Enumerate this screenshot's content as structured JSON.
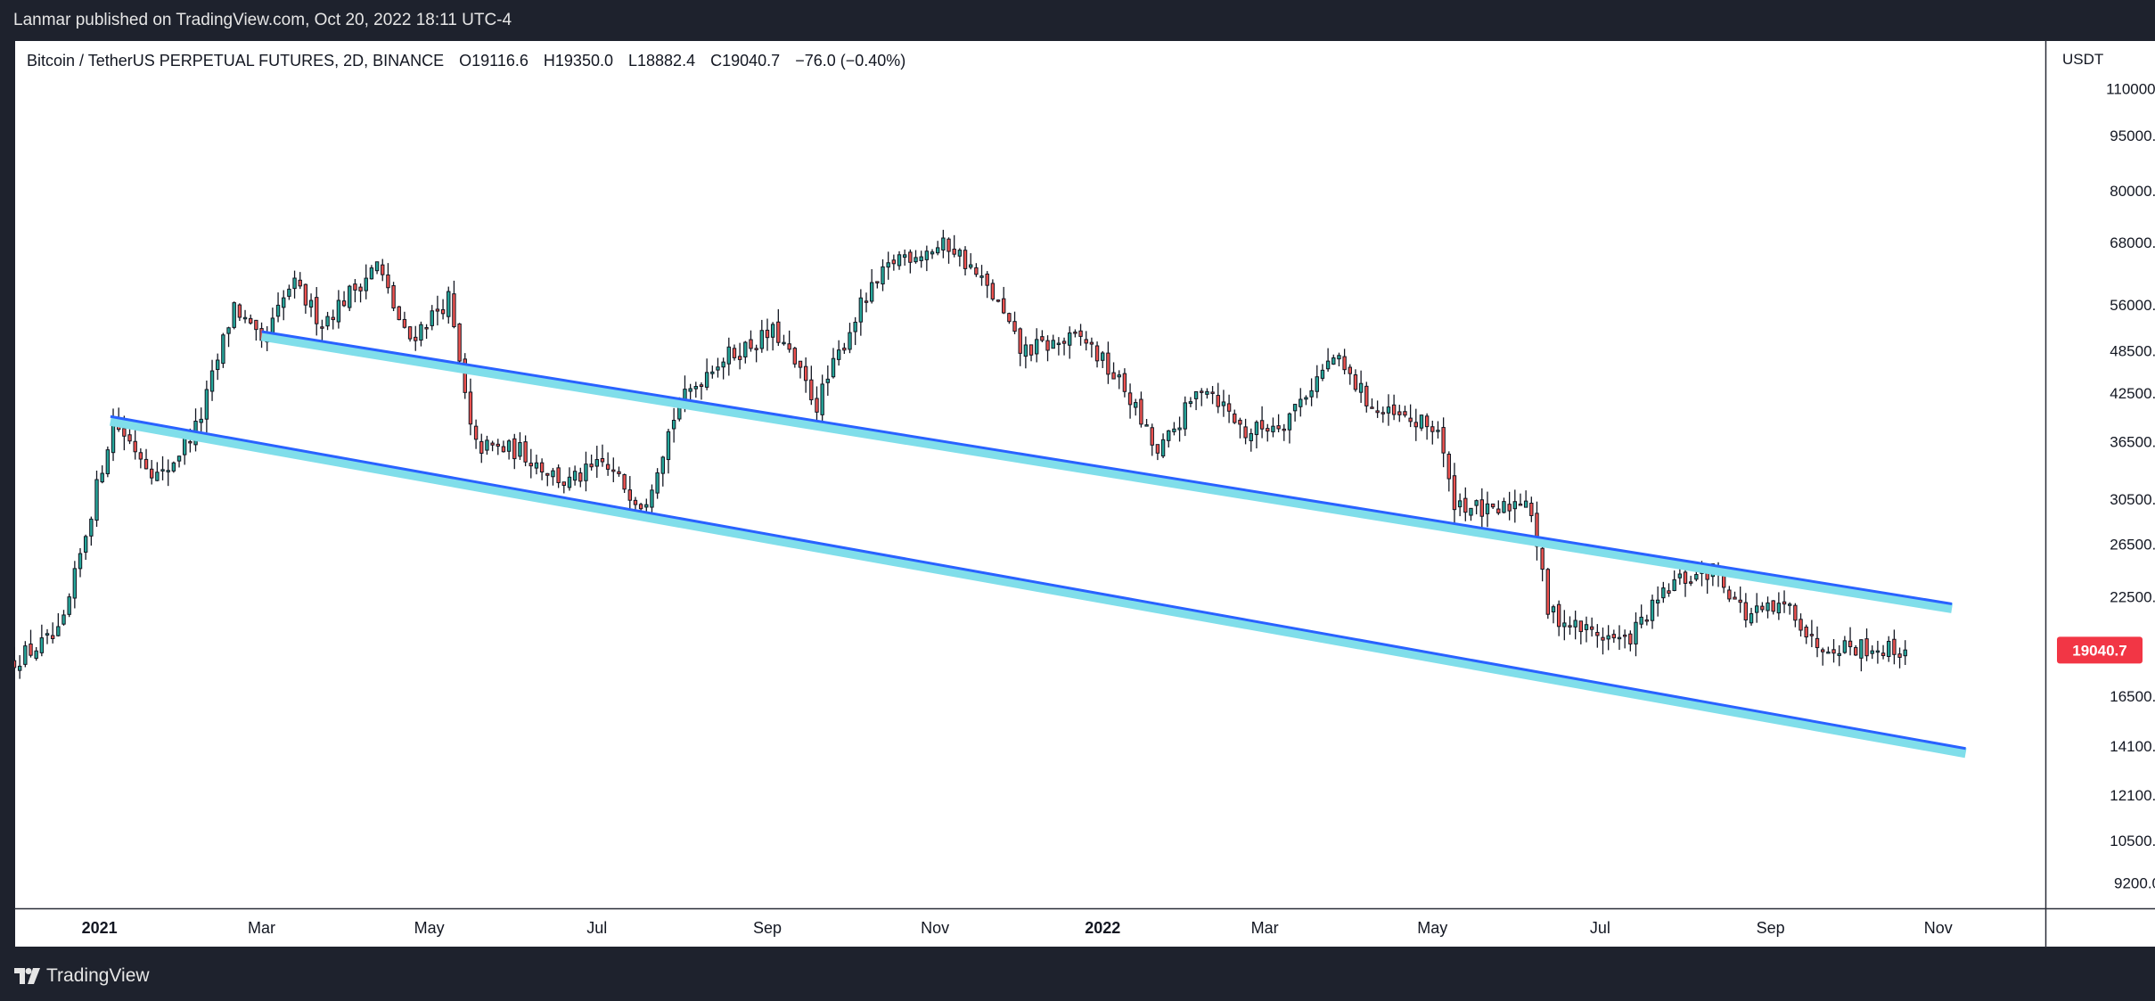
{
  "header": {
    "published_by": "Lanmar published on TradingView.com, Oct 20, 2022 18:11 UTC-4"
  },
  "legend": {
    "symbol": "Bitcoin / TetherUS PERPETUAL FUTURES, 2D, BINANCE",
    "open": "O19116.6",
    "high": "H19350.0",
    "low": "L18882.4",
    "close": "C19040.7",
    "change": "−76.0 (−0.40%)"
  },
  "footer": {
    "brand": "TradingView"
  },
  "colors": {
    "up": "#26a69a",
    "down": "#ef5350",
    "candle": "#131722",
    "channel_line": "#2962ff",
    "channel_glow": "#80deea",
    "price_tag": "#f23645"
  },
  "chart_data": {
    "type": "candlestick",
    "scale": "log",
    "currency": "USDT",
    "y_ticks": [
      "110000.0",
      "95000.0",
      "80000.0",
      "68000.0",
      "56000.0",
      "48500.0",
      "42500.0",
      "36500.0",
      "30500.0",
      "26500.0",
      "22500.0",
      "19040.7",
      "16500.0",
      "14100.0",
      "12100.0",
      "10500.0",
      "9200.0"
    ],
    "y_tick_values": [
      110000,
      95000,
      80000,
      68000,
      56000,
      48500,
      42500,
      36500,
      30500,
      26500,
      22500,
      19040.7,
      16500,
      14100,
      12100,
      10500,
      9200
    ],
    "x_ticks": [
      "2021",
      "Mar",
      "May",
      "Jul",
      "Sep",
      "Nov",
      "2022",
      "Mar",
      "May",
      "Jul",
      "Sep",
      "Nov"
    ],
    "x_tick_dates": [
      "2021-01-01",
      "2021-03-01",
      "2021-05-01",
      "2021-07-01",
      "2021-09-01",
      "2021-11-01",
      "2022-01-01",
      "2022-03-01",
      "2022-05-01",
      "2022-07-01",
      "2022-09-01",
      "2022-11-01"
    ],
    "last_price": "19040.7",
    "last_price_value": 19040.7,
    "x_range": [
      "2020-12-01",
      "2022-12-10"
    ],
    "y_range": [
      8500,
      128000
    ],
    "anchors": [
      [
        "2020-12-01",
        18300
      ],
      [
        "2020-12-20",
        20000
      ],
      [
        "2021-01-08",
        39000
      ],
      [
        "2021-01-25",
        32500
      ],
      [
        "2021-02-08",
        38500
      ],
      [
        "2021-02-21",
        56000
      ],
      [
        "2021-03-03",
        49000
      ],
      [
        "2021-03-14",
        60000
      ],
      [
        "2021-03-25",
        53000
      ],
      [
        "2021-04-14",
        63500
      ],
      [
        "2021-04-25",
        50000
      ],
      [
        "2021-05-10",
        57000
      ],
      [
        "2021-05-19",
        36000
      ],
      [
        "2021-06-05",
        35500
      ],
      [
        "2021-06-22",
        32000
      ],
      [
        "2021-07-05",
        34000
      ],
      [
        "2021-07-20",
        30000
      ],
      [
        "2021-08-01",
        40500
      ],
      [
        "2021-08-14",
        46500
      ],
      [
        "2021-09-06",
        51500
      ],
      [
        "2021-09-21",
        41000
      ],
      [
        "2021-10-06",
        55000
      ],
      [
        "2021-10-20",
        65000
      ],
      [
        "2021-11-09",
        67500
      ],
      [
        "2021-11-25",
        57000
      ],
      [
        "2021-12-04",
        48500
      ],
      [
        "2021-12-27",
        50500
      ],
      [
        "2022-01-12",
        42500
      ],
      [
        "2022-01-23",
        35000
      ],
      [
        "2022-02-09",
        44000
      ],
      [
        "2022-02-24",
        37500
      ],
      [
        "2022-03-10",
        39000
      ],
      [
        "2022-03-28",
        47500
      ],
      [
        "2022-04-13",
        40000
      ],
      [
        "2022-05-05",
        38000
      ],
      [
        "2022-05-10",
        30500
      ],
      [
        "2022-05-25",
        29000
      ],
      [
        "2022-06-07",
        31000
      ],
      [
        "2022-06-14",
        21500
      ],
      [
        "2022-06-24",
        20500
      ],
      [
        "2022-07-12",
        19500
      ],
      [
        "2022-07-30",
        23500
      ],
      [
        "2022-08-14",
        24500
      ],
      [
        "2022-08-25",
        21200
      ],
      [
        "2022-09-11",
        21800
      ],
      [
        "2022-09-18",
        19500
      ],
      [
        "2022-10-20",
        19040.7
      ]
    ],
    "channel": {
      "upper": {
        "start": [
          "2021-03-01",
          51500
        ],
        "end": [
          "2022-11-06",
          22000
        ]
      },
      "lower": {
        "start": [
          "2021-01-05",
          39500
        ],
        "end": [
          "2022-11-11",
          14000
        ]
      }
    }
  }
}
